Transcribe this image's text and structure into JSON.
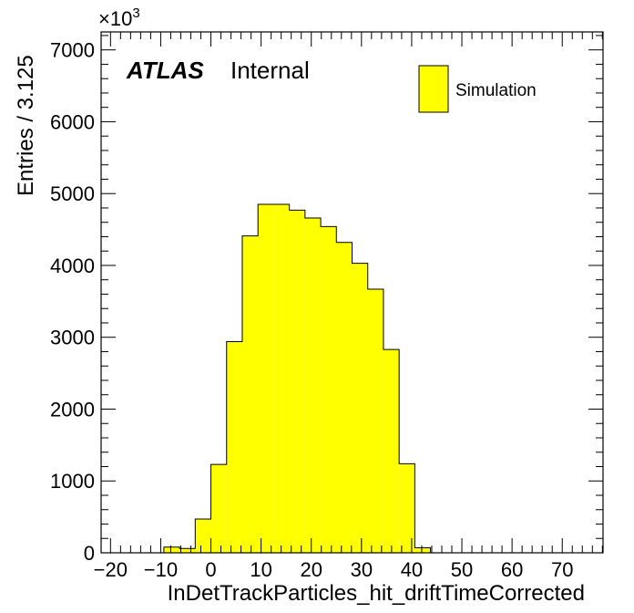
{
  "chart_data": {
    "type": "bar",
    "histogram": true,
    "xlabel": "InDetTrackParticles_hit_driftTimeCorrected",
    "ylabel": "Entries / 3.125",
    "y_multiplier_label": "×10",
    "y_multiplier_exponent": "3",
    "xlim": [
      -21.875,
      78.125
    ],
    "ylim": [
      0,
      7250
    ],
    "bin_width": 3.125,
    "bin_edges": [
      -9.375,
      -6.25,
      -3.125,
      0,
      3.125,
      6.25,
      9.375,
      12.5,
      15.625,
      18.75,
      21.875,
      25,
      28.125,
      31.25,
      34.375,
      37.5,
      40.625,
      43.75
    ],
    "series": [
      {
        "name": "Simulation",
        "values": [
          80,
          60,
          470,
          1230,
          2940,
          4410,
          4850,
          4850,
          4770,
          4660,
          4540,
          4320,
          4030,
          3670,
          2830,
          1240,
          70
        ]
      }
    ],
    "x_ticks": [
      -20,
      -10,
      0,
      10,
      20,
      30,
      40,
      50,
      60,
      70
    ],
    "x_tick_labels": [
      "−20",
      "−10",
      "0",
      "10",
      "20",
      "30",
      "40",
      "50",
      "60",
      "70"
    ],
    "y_ticks": [
      0,
      1000,
      2000,
      3000,
      4000,
      5000,
      6000,
      7000
    ],
    "y_tick_labels": [
      "0",
      "1000",
      "2000",
      "3000",
      "4000",
      "5000",
      "6000",
      "7000"
    ],
    "legend": {
      "position": "top-right",
      "entries": [
        "Simulation"
      ]
    },
    "annotation": {
      "experiment": "ATLAS",
      "status": "Internal"
    },
    "colors": {
      "fill": "#ffff00",
      "line": "#000000"
    },
    "grid": false
  }
}
